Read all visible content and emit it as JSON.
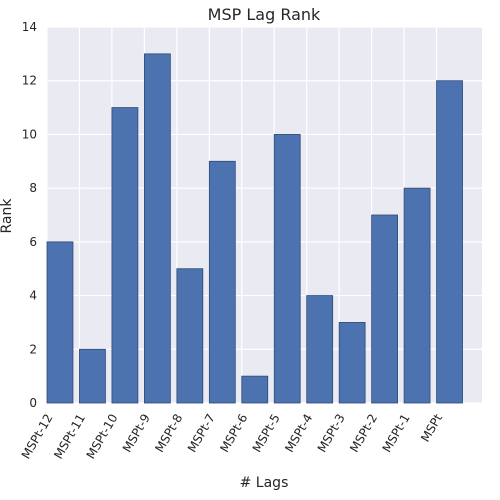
{
  "chart_data": {
    "type": "bar",
    "title": "MSP Lag Rank",
    "xlabel": "# Lags",
    "ylabel": "Rank",
    "categories": [
      "MSPt-12",
      "MSPt-11",
      "MSPt-10",
      "MSPt-9",
      "MSPt-8",
      "MSPt-7",
      "MSPt-6",
      "MSPt-5",
      "MSPt-4",
      "MSPt-3",
      "MSPt-2",
      "MSPt-1",
      "MSPt"
    ],
    "values": [
      6,
      2,
      11,
      13,
      5,
      9,
      1,
      10,
      4,
      3,
      7,
      8,
      12
    ],
    "ylim": [
      0,
      14
    ],
    "yticks": [
      0,
      2,
      4,
      6,
      8,
      10,
      12,
      14
    ],
    "grid": true,
    "colors": {
      "bar": "#4c72b0",
      "bar_edge": "#2f4a78",
      "plot_background": "#eaeaf2",
      "grid": "#ffffff"
    }
  }
}
